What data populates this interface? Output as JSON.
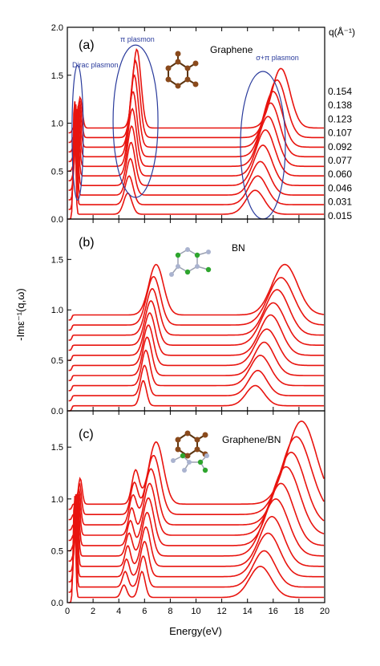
{
  "chart_data": {
    "type": "line",
    "xlabel": "Energy(eV)",
    "ylabel": "-Imε⁻¹(q,ω)",
    "xlim": [
      0,
      20
    ],
    "xticks": [
      "0",
      "2",
      "4",
      "6",
      "8",
      "10",
      "12",
      "14",
      "16",
      "18",
      "20"
    ],
    "line_color": "#e8140f",
    "q_unit": "q(Å⁻¹)",
    "q_values": [
      "0.154",
      "0.138",
      "0.123",
      "0.107",
      "0.092",
      "0.077",
      "0.060",
      "0.046",
      "0.031",
      "0.015"
    ],
    "panels": [
      {
        "label": "(a)",
        "material": "Graphene",
        "ylim": [
          0,
          2.0
        ],
        "yticks": [
          "0.0",
          "0.5",
          "1.0",
          "1.5",
          "2.0"
        ],
        "annotations": [
          {
            "text": "Dirac plasmon",
            "center_x": 0.8,
            "center_y": 0.9
          },
          {
            "text": "π plasmon",
            "center_x": 5.3,
            "center_y": 1.02
          },
          {
            "text": "σ+π plasmon",
            "center_x": 15.2,
            "center_y": 0.77
          }
        ],
        "curves": [
          {
            "q": "0.015",
            "offset": 0.0,
            "peaks": [
              [
                0.55,
                1.25,
                0.12
              ],
              [
                4.7,
                0.22,
                0.45
              ],
              [
                14.6,
                0.25,
                1.0
              ]
            ]
          },
          {
            "q": "0.031",
            "offset": 0.1,
            "peaks": [
              [
                0.6,
                1.1,
                0.14
              ],
              [
                4.8,
                0.3,
                0.45
              ],
              [
                14.8,
                0.3,
                1.0
              ]
            ]
          },
          {
            "q": "0.046",
            "offset": 0.2,
            "peaks": [
              [
                0.65,
                0.95,
                0.15
              ],
              [
                4.9,
                0.38,
                0.45
              ],
              [
                15.0,
                0.35,
                1.0
              ]
            ]
          },
          {
            "q": "0.060",
            "offset": 0.3,
            "peaks": [
              [
                0.7,
                0.8,
                0.16
              ],
              [
                4.95,
                0.45,
                0.45
              ],
              [
                15.2,
                0.42,
                1.0
              ]
            ]
          },
          {
            "q": "0.077",
            "offset": 0.4,
            "peaks": [
              [
                0.75,
                0.7,
                0.17
              ],
              [
                5.0,
                0.52,
                0.45
              ],
              [
                15.4,
                0.48,
                1.0
              ]
            ]
          },
          {
            "q": "0.092",
            "offset": 0.5,
            "peaks": [
              [
                0.8,
                0.6,
                0.18
              ],
              [
                5.05,
                0.6,
                0.45
              ],
              [
                15.6,
                0.52,
                1.0
              ]
            ]
          },
          {
            "q": "0.107",
            "offset": 0.6,
            "peaks": [
              [
                0.85,
                0.52,
                0.19
              ],
              [
                5.1,
                0.68,
                0.45
              ],
              [
                15.8,
                0.56,
                1.0
              ]
            ]
          },
          {
            "q": "0.123",
            "offset": 0.7,
            "peaks": [
              [
                0.9,
                0.45,
                0.2
              ],
              [
                5.2,
                0.75,
                0.45
              ],
              [
                16.0,
                0.58,
                1.0
              ]
            ]
          },
          {
            "q": "0.138",
            "offset": 0.8,
            "peaks": [
              [
                0.95,
                0.38,
                0.21
              ],
              [
                5.3,
                0.8,
                0.45
              ],
              [
                16.3,
                0.6,
                1.0
              ]
            ]
          },
          {
            "q": "0.154",
            "offset": 0.9,
            "peaks": [
              [
                1.0,
                0.32,
                0.22
              ],
              [
                5.4,
                0.82,
                0.45
              ],
              [
                16.6,
                0.62,
                1.0
              ]
            ]
          }
        ]
      },
      {
        "label": "(b)",
        "material": "BN",
        "ylim": [
          0,
          1.9
        ],
        "yticks": [
          "0.0",
          "0.5",
          "1.0",
          "1.5"
        ],
        "curves": [
          {
            "q": "0.015",
            "offset": 0.0,
            "peaks": [
              [
                5.9,
                0.25,
                0.35
              ],
              [
                14.6,
                0.2,
                1.0
              ]
            ]
          },
          {
            "q": "0.031",
            "offset": 0.1,
            "peaks": [
              [
                6.0,
                0.3,
                0.4
              ],
              [
                14.8,
                0.25,
                1.0
              ]
            ]
          },
          {
            "q": "0.046",
            "offset": 0.2,
            "peaks": [
              [
                6.1,
                0.35,
                0.45
              ],
              [
                15.0,
                0.3,
                1.1
              ]
            ]
          },
          {
            "q": "0.060",
            "offset": 0.3,
            "peaks": [
              [
                6.2,
                0.38,
                0.5
              ],
              [
                15.3,
                0.33,
                1.1
              ]
            ]
          },
          {
            "q": "0.077",
            "offset": 0.4,
            "peaks": [
              [
                6.3,
                0.4,
                0.55
              ],
              [
                15.5,
                0.36,
                1.2
              ]
            ]
          },
          {
            "q": "0.092",
            "offset": 0.5,
            "peaks": [
              [
                6.4,
                0.42,
                0.6
              ],
              [
                15.8,
                0.4,
                1.2
              ]
            ]
          },
          {
            "q": "0.107",
            "offset": 0.6,
            "peaks": [
              [
                6.5,
                0.44,
                0.65
              ],
              [
                16.0,
                0.42,
                1.3
              ]
            ]
          },
          {
            "q": "0.123",
            "offset": 0.7,
            "peaks": [
              [
                6.6,
                0.46,
                0.7
              ],
              [
                16.3,
                0.45,
                1.3
              ]
            ]
          },
          {
            "q": "0.138",
            "offset": 0.8,
            "peaks": [
              [
                6.7,
                0.48,
                0.75
              ],
              [
                16.6,
                0.47,
                1.4
              ]
            ]
          },
          {
            "q": "0.154",
            "offset": 0.9,
            "peaks": [
              [
                6.9,
                0.5,
                0.8
              ],
              [
                16.9,
                0.5,
                1.4
              ]
            ]
          }
        ]
      },
      {
        "label": "(c)",
        "material": "Graphene/BN",
        "ylim": [
          0,
          1.85
        ],
        "yticks": [
          "0.0",
          "0.5",
          "1.0",
          "1.5"
        ],
        "curves": [
          {
            "q": "0.015",
            "offset": 0.0,
            "peaks": [
              [
                0.55,
                1.0,
                0.12
              ],
              [
                4.4,
                0.12,
                0.3
              ],
              [
                5.8,
                0.25,
                0.35
              ],
              [
                15.0,
                0.3,
                1.2
              ]
            ]
          },
          {
            "q": "0.031",
            "offset": 0.1,
            "peaks": [
              [
                0.6,
                0.9,
                0.13
              ],
              [
                4.5,
                0.15,
                0.3
              ],
              [
                5.9,
                0.3,
                0.4
              ],
              [
                15.3,
                0.35,
                1.2
              ]
            ]
          },
          {
            "q": "0.046",
            "offset": 0.2,
            "peaks": [
              [
                0.65,
                0.8,
                0.14
              ],
              [
                4.6,
                0.17,
                0.3
              ],
              [
                6.0,
                0.34,
                0.45
              ],
              [
                15.6,
                0.42,
                1.3
              ]
            ]
          },
          {
            "q": "0.060",
            "offset": 0.3,
            "peaks": [
              [
                0.7,
                0.7,
                0.15
              ],
              [
                4.7,
                0.2,
                0.3
              ],
              [
                6.1,
                0.38,
                0.5
              ],
              [
                15.9,
                0.48,
                1.3
              ]
            ]
          },
          {
            "q": "0.077",
            "offset": 0.4,
            "peaks": [
              [
                0.75,
                0.6,
                0.16
              ],
              [
                4.8,
                0.22,
                0.35
              ],
              [
                6.2,
                0.42,
                0.55
              ],
              [
                16.2,
                0.55,
                1.4
              ]
            ]
          },
          {
            "q": "0.092",
            "offset": 0.5,
            "peaks": [
              [
                0.8,
                0.5,
                0.17
              ],
              [
                4.9,
                0.24,
                0.35
              ],
              [
                6.3,
                0.46,
                0.6
              ],
              [
                16.6,
                0.6,
                1.4
              ]
            ]
          },
          {
            "q": "0.107",
            "offset": 0.6,
            "peaks": [
              [
                0.85,
                0.42,
                0.18
              ],
              [
                5.0,
                0.26,
                0.35
              ],
              [
                6.4,
                0.5,
                0.65
              ],
              [
                17.0,
                0.66,
                1.5
              ]
            ]
          },
          {
            "q": "0.123",
            "offset": 0.7,
            "peaks": [
              [
                0.9,
                0.35,
                0.19
              ],
              [
                5.1,
                0.28,
                0.4
              ],
              [
                6.5,
                0.54,
                0.7
              ],
              [
                17.4,
                0.7,
                1.5
              ]
            ]
          },
          {
            "q": "0.138",
            "offset": 0.8,
            "peaks": [
              [
                0.95,
                0.3,
                0.2
              ],
              [
                5.2,
                0.3,
                0.4
              ],
              [
                6.7,
                0.57,
                0.75
              ],
              [
                17.8,
                0.75,
                1.6
              ]
            ]
          },
          {
            "q": "0.154",
            "offset": 0.9,
            "peaks": [
              [
                1.0,
                0.25,
                0.21
              ],
              [
                5.3,
                0.32,
                0.4
              ],
              [
                6.9,
                0.6,
                0.8
              ],
              [
                18.2,
                0.8,
                1.6
              ]
            ]
          }
        ]
      }
    ]
  }
}
